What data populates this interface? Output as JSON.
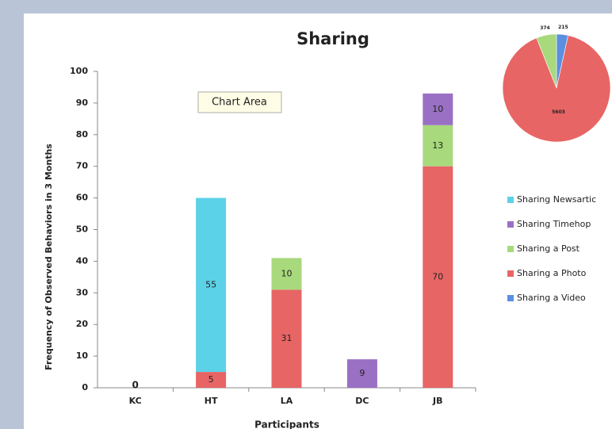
{
  "chart_data": [
    {
      "type": "bar",
      "title": "Sharing",
      "xlabel": "Participants",
      "ylabel": "Frequency of Observed Behaviors in 3 Months",
      "categories": [
        "KC",
        "HT",
        "LA",
        "DC",
        "JB"
      ],
      "series": [
        {
          "name": "Sharing Newsartic",
          "color": "#5cd2e8",
          "values": [
            null,
            55,
            null,
            null,
            null
          ]
        },
        {
          "name": "Sharing Timehop",
          "color": "#9a70c4",
          "values": [
            null,
            null,
            null,
            9,
            10
          ]
        },
        {
          "name": "Sharing a Post",
          "color": "#a8d97c",
          "values": [
            null,
            null,
            10,
            null,
            13
          ]
        },
        {
          "name": "Sharing a Photo",
          "color": "#e86565",
          "values": [
            0,
            5,
            31,
            null,
            70
          ]
        },
        {
          "name": "Sharing a Video",
          "color": "#5b8fe0",
          "values": [
            null,
            null,
            null,
            null,
            null
          ]
        }
      ],
      "stacked": true,
      "ylim": [
        0,
        100
      ],
      "yticks": [
        0,
        10,
        20,
        30,
        40,
        50,
        60,
        70,
        80,
        90,
        100
      ],
      "grid": false,
      "legend": "right"
    },
    {
      "type": "pie",
      "values": [
        215,
        5603,
        374
      ],
      "colors": [
        "#5b8fe0",
        "#e86565",
        "#a8d97c"
      ]
    }
  ],
  "tooltip": "Chart Area"
}
